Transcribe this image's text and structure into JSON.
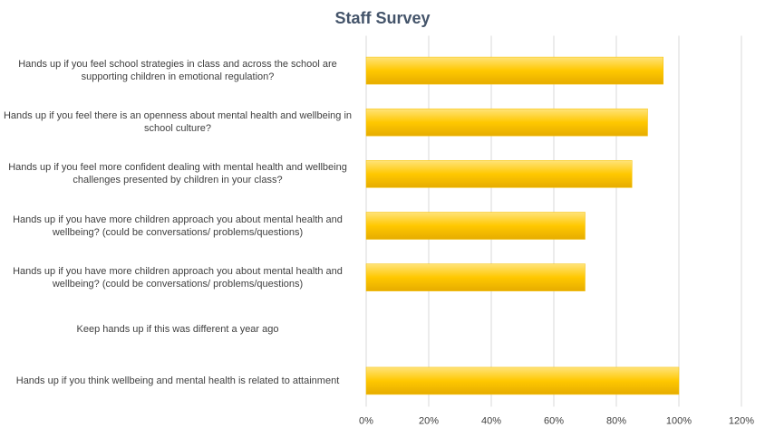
{
  "chart_data": {
    "type": "bar",
    "orientation": "horizontal",
    "title": "Staff Survey",
    "categories": [
      "Hands up if you feel school strategies in class and across the school are supporting children in emotional regulation?",
      "Hands up if you feel there is an openness about mental health and wellbeing in school culture?",
      "Hands up if you feel more confident dealing with mental health and wellbeing challenges presented by children in your class?",
      "Hands up if you have more children approach you about mental health and wellbeing? (could be conversations/ problems/questions)",
      "Hands up if you have more children approach you about mental health and wellbeing? (could be conversations/ problems/questions)",
      "Keep hands up if this was different a year ago",
      "Hands up if you think wellbeing and mental health is related to attainment"
    ],
    "values": [
      95,
      90,
      85,
      70,
      70,
      0,
      100
    ],
    "color": "#f5c000",
    "xlim": [
      0,
      120
    ],
    "xticks": [
      {
        "value": 0,
        "label": "0%"
      },
      {
        "value": 20,
        "label": "20%"
      },
      {
        "value": 40,
        "label": "40%"
      },
      {
        "value": 60,
        "label": "60%"
      },
      {
        "value": 80,
        "label": "80%"
      },
      {
        "value": 100,
        "label": "100%"
      },
      {
        "value": 120,
        "label": "120%"
      }
    ],
    "grid": true
  }
}
